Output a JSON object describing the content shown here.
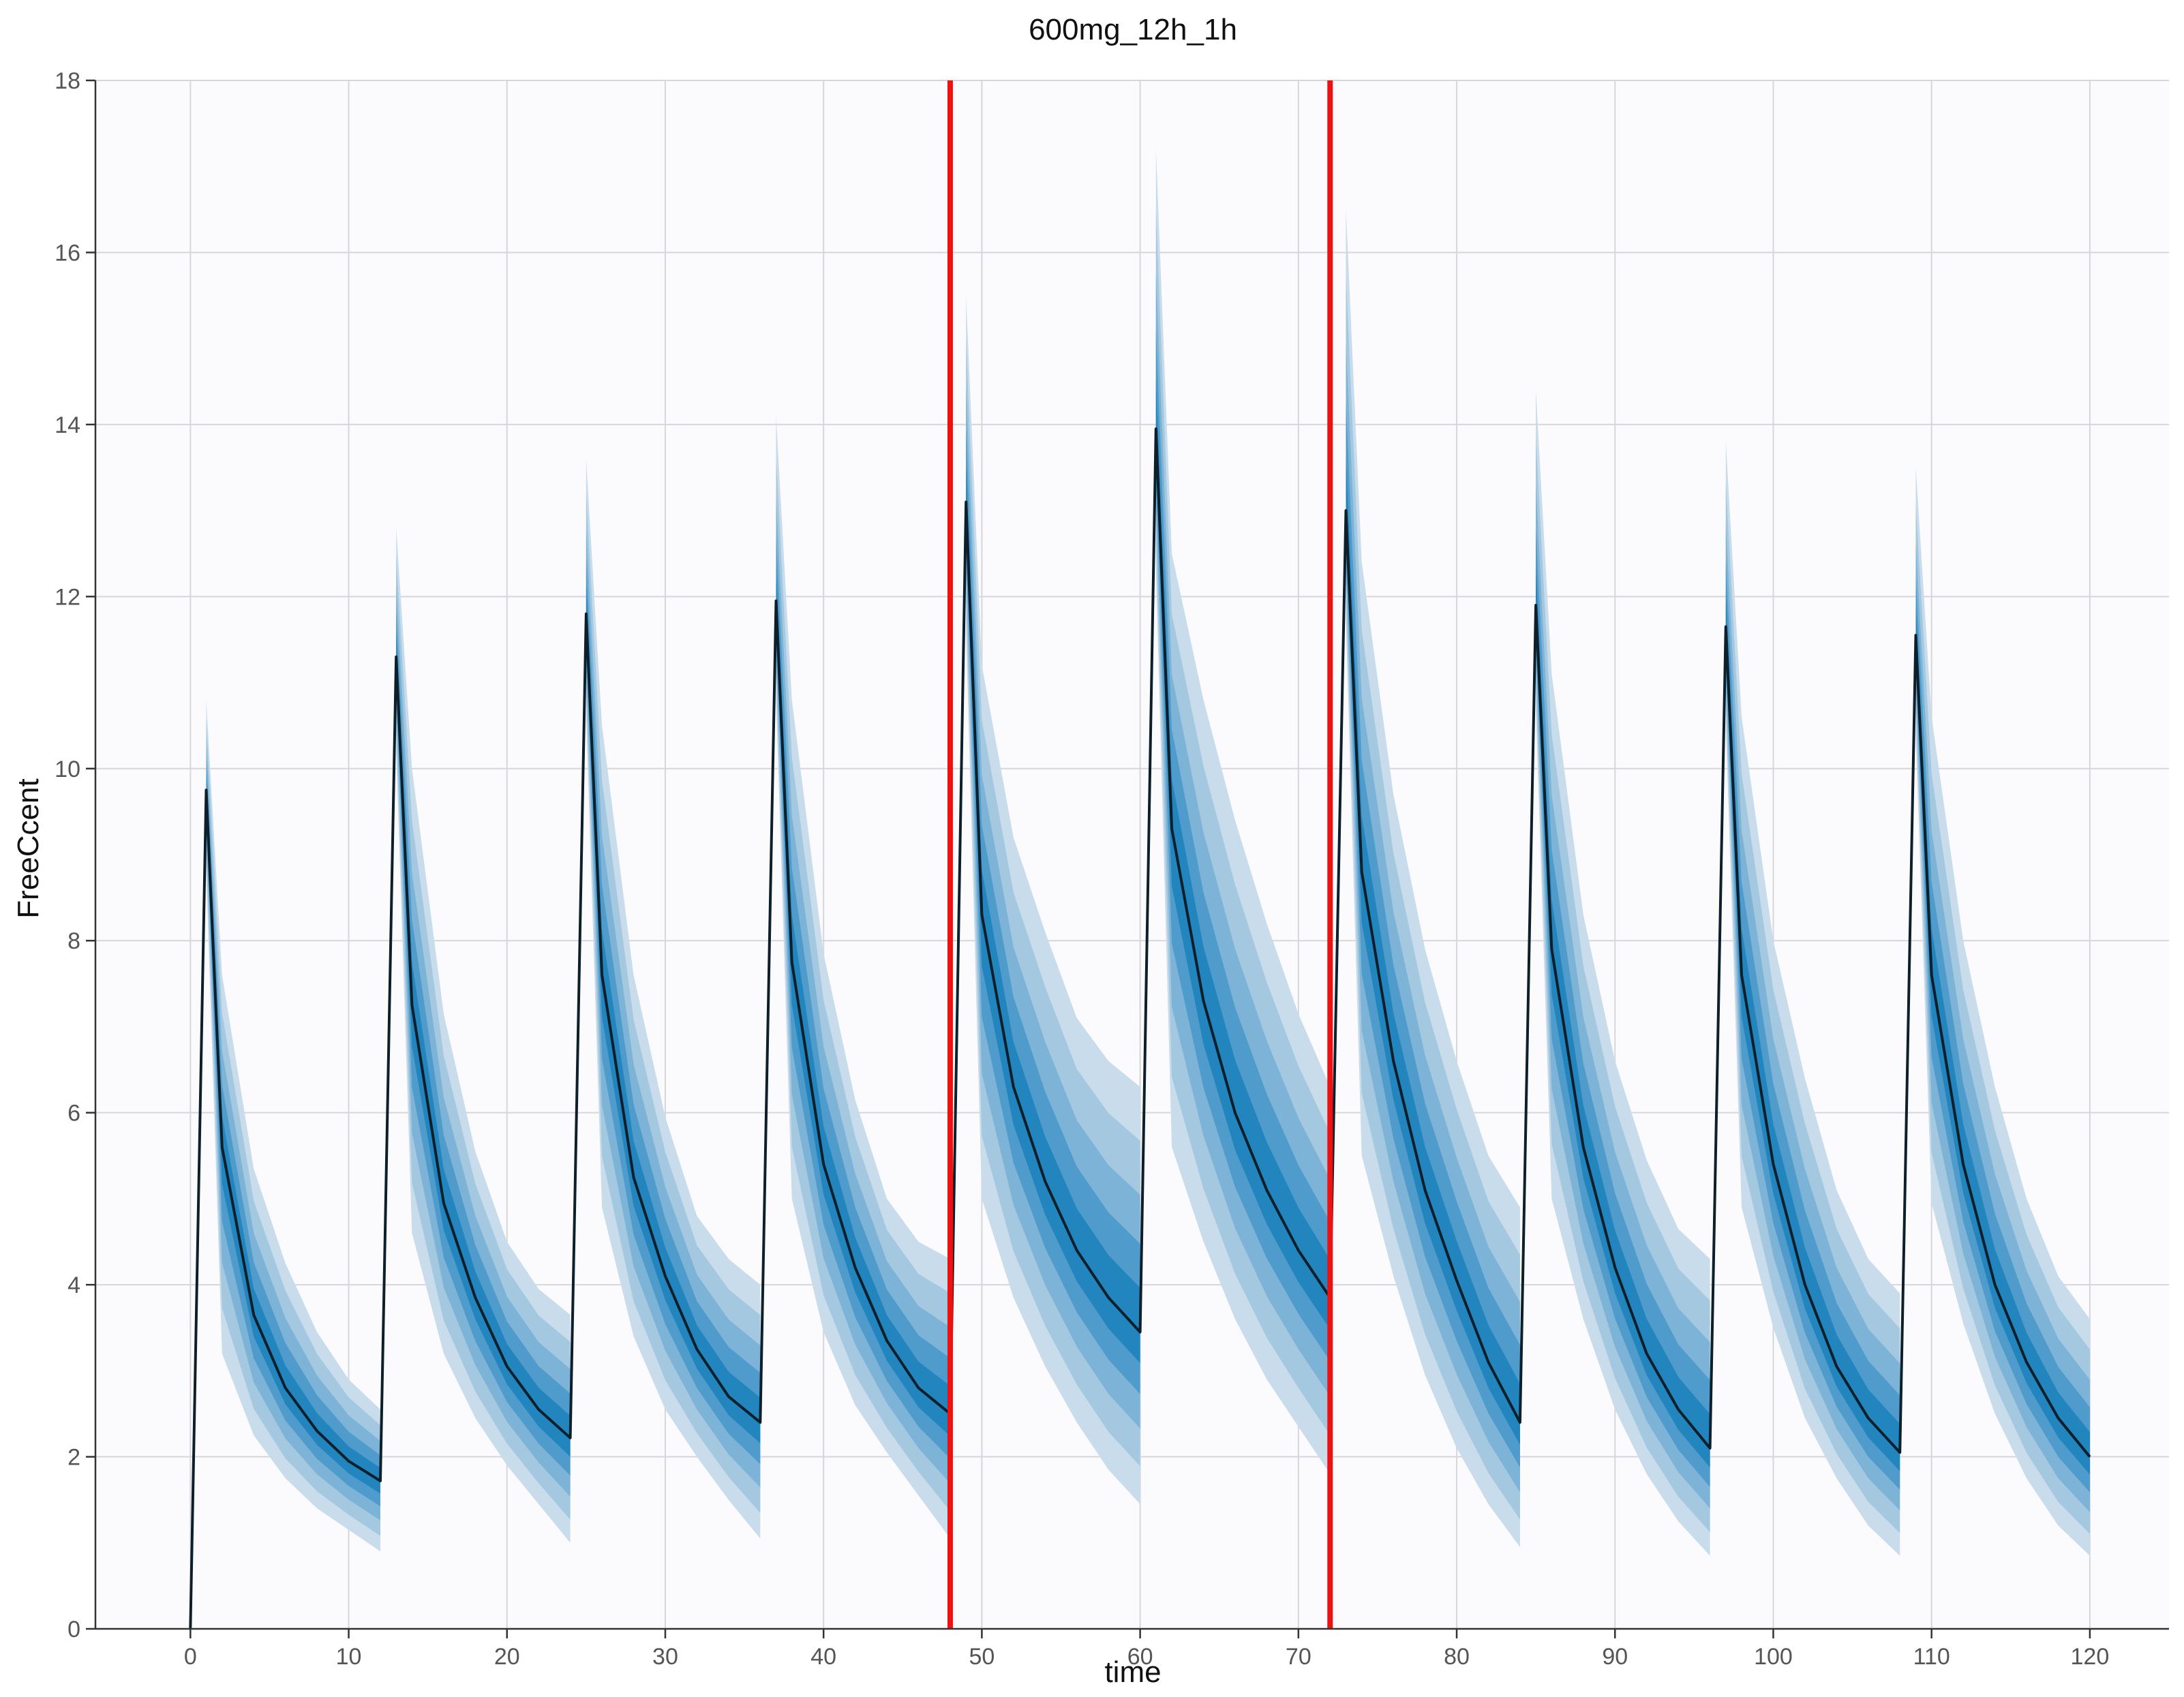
{
  "chart_data": {
    "type": "area",
    "title": "600mg_12h_1h",
    "xlabel": "time",
    "ylabel": "FreeCcent",
    "xlim": [
      -6,
      125
    ],
    "ylim": [
      0,
      18
    ],
    "x_ticks": [
      0,
      10,
      20,
      30,
      40,
      50,
      60,
      70,
      80,
      90,
      100,
      110,
      120
    ],
    "y_ticks": [
      0,
      2,
      4,
      6,
      8,
      10,
      12,
      14,
      16,
      18
    ],
    "grid": true,
    "legend": "none",
    "dose_interval_h": 12,
    "infusion_duration_h": 1,
    "vertical_lines": [
      48,
      72
    ],
    "colors": {
      "plot_background": "#fbfbfd",
      "grid": "#d6d6dc",
      "median_line": "#0d1f2b",
      "band_outer": "#c8dceb",
      "band_2": "#a4c8e0",
      "band_3": "#7cb3d6",
      "band_4": "#4f9bcb",
      "band_inner": "#2285bd",
      "reference_line": "#ee1111"
    },
    "series": [
      {
        "x": [
          0,
          1,
          2,
          4,
          6,
          8,
          10,
          12,
          13,
          14,
          16,
          18,
          20,
          22,
          24,
          25,
          26,
          28,
          30,
          32,
          34,
          36,
          37,
          38,
          40,
          42,
          44,
          46,
          48,
          49,
          50,
          52,
          54,
          56,
          58,
          60,
          61,
          62,
          64,
          66,
          68,
          70,
          72,
          73,
          74,
          76,
          78,
          80,
          82,
          84,
          85,
          86,
          88,
          90,
          92,
          94,
          96,
          97,
          98,
          100,
          102,
          104,
          106,
          108,
          109,
          110,
          112,
          114,
          116,
          118,
          120
        ],
        "median": [
          0,
          9.75,
          5.6,
          3.65,
          2.8,
          2.3,
          1.95,
          1.72,
          11.3,
          7.25,
          4.95,
          3.85,
          3.05,
          2.55,
          2.22,
          11.8,
          7.6,
          5.25,
          4.1,
          3.25,
          2.7,
          2.4,
          11.95,
          7.75,
          5.4,
          4.2,
          3.35,
          2.8,
          2.5,
          13.1,
          8.3,
          6.3,
          5.2,
          4.4,
          3.85,
          3.45,
          13.95,
          9.3,
          7.3,
          6.0,
          5.1,
          4.4,
          3.85,
          13.0,
          8.8,
          6.6,
          5.1,
          4.05,
          3.1,
          2.4,
          11.9,
          7.9,
          5.6,
          4.2,
          3.2,
          2.55,
          2.1,
          11.65,
          7.6,
          5.4,
          4.0,
          3.05,
          2.45,
          2.05,
          11.55,
          7.6,
          5.4,
          4.0,
          3.1,
          2.45,
          2.0
        ],
        "p_low": [
          0,
          8.8,
          3.2,
          2.25,
          1.75,
          1.4,
          1.15,
          0.9,
          10.2,
          4.6,
          3.2,
          2.45,
          1.9,
          1.45,
          1.0,
          10.6,
          4.9,
          3.4,
          2.55,
          2.0,
          1.5,
          1.05,
          10.8,
          5.0,
          3.45,
          2.6,
          2.05,
          1.55,
          1.05,
          11.6,
          5.0,
          3.85,
          3.05,
          2.4,
          1.85,
          1.45,
          12.3,
          5.6,
          4.5,
          3.6,
          2.9,
          2.35,
          1.8,
          11.7,
          5.5,
          4.1,
          2.95,
          2.1,
          1.45,
          0.95,
          10.7,
          5.0,
          3.6,
          2.55,
          1.8,
          1.25,
          0.85,
          10.5,
          4.9,
          3.5,
          2.45,
          1.75,
          1.2,
          0.85,
          10.4,
          4.95,
          3.55,
          2.5,
          1.75,
          1.2,
          0.85
        ],
        "p_high": [
          0,
          10.8,
          7.6,
          5.35,
          4.25,
          3.45,
          2.9,
          2.55,
          12.8,
          10.0,
          7.15,
          5.55,
          4.5,
          3.95,
          3.65,
          13.6,
          10.5,
          7.6,
          5.95,
          4.8,
          4.3,
          4.0,
          14.1,
          10.8,
          7.85,
          6.15,
          5.0,
          4.5,
          4.3,
          15.5,
          11.2,
          9.2,
          8.1,
          7.1,
          6.6,
          6.3,
          17.2,
          12.5,
          10.8,
          9.4,
          8.2,
          7.15,
          6.3,
          16.5,
          12.4,
          9.7,
          7.9,
          6.6,
          5.5,
          4.9,
          14.4,
          11.1,
          8.3,
          6.6,
          5.45,
          4.65,
          4.3,
          13.8,
          10.6,
          8.0,
          6.4,
          5.1,
          4.3,
          3.9,
          13.5,
          10.6,
          8.0,
          6.3,
          5.0,
          4.1,
          3.6
        ]
      }
    ]
  }
}
